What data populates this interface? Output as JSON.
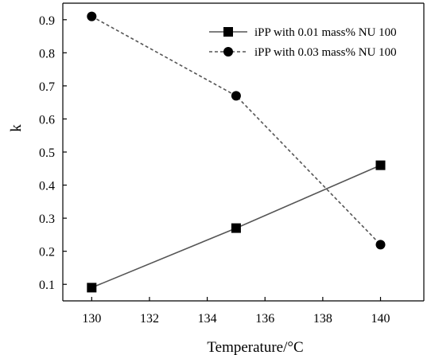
{
  "chart_data": {
    "type": "line",
    "title": "",
    "xlabel": "Temperature/°C",
    "ylabel": "k",
    "xlim": [
      129,
      141.5
    ],
    "ylim": [
      0.05,
      0.95
    ],
    "xticks": [
      "130",
      "132",
      "134",
      "136",
      "138",
      "140"
    ],
    "yticks": [
      "0.1",
      "0.2",
      "0.3",
      "0.4",
      "0.5",
      "0.6",
      "0.7",
      "0.8",
      "0.9"
    ],
    "x": [
      130,
      135,
      140
    ],
    "grid": false,
    "legend_position": "top-right",
    "series": [
      {
        "name": "iPP with 0.01 mass% NU 100",
        "values": [
          0.09,
          0.27,
          0.46
        ],
        "marker": "square",
        "line_style": "solid",
        "color": "#555555"
      },
      {
        "name": "iPP with 0.03 mass% NU 100",
        "values": [
          0.91,
          0.67,
          0.22
        ],
        "marker": "circle",
        "line_style": "dashed",
        "color": "#555555"
      }
    ]
  }
}
